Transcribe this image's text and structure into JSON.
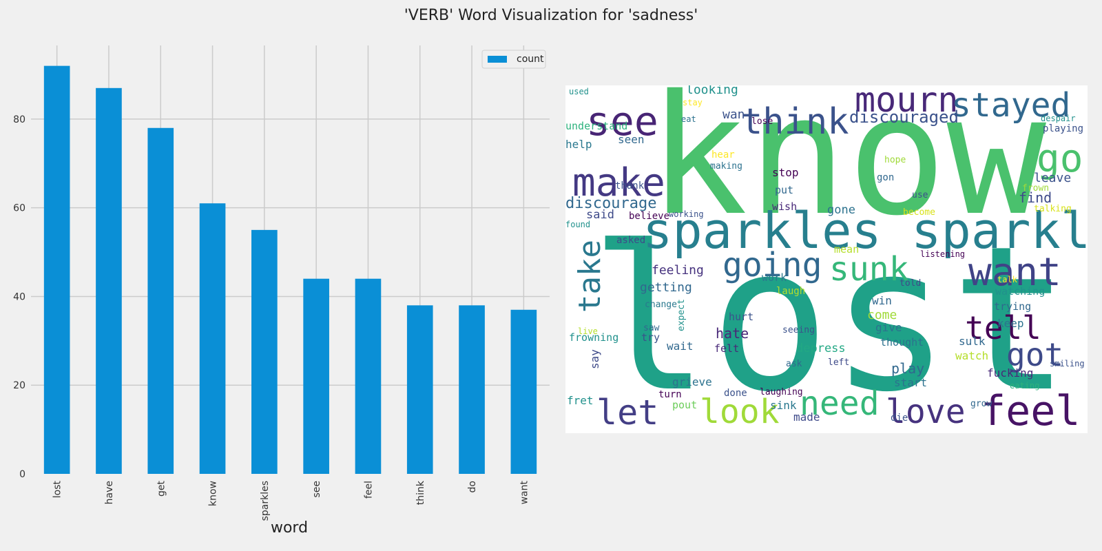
{
  "figure": {
    "title": "'VERB' Word Visualization for 'sadness'"
  },
  "chart_data": [
    {
      "type": "bar",
      "categories": [
        "lost",
        "have",
        "get",
        "know",
        "sparkles",
        "see",
        "feel",
        "think",
        "do",
        "want"
      ],
      "series": [
        {
          "name": "count",
          "values": [
            92,
            87,
            78,
            61,
            55,
            44,
            44,
            38,
            38,
            37
          ]
        }
      ],
      "xlabel": "word",
      "ylabel": "",
      "ylim": [
        0,
        96.6
      ],
      "yticks": [
        0,
        20,
        40,
        60,
        80
      ],
      "grid": true,
      "legend": "top-right",
      "colors": {
        "bar": "#0a8fd6",
        "grid": "#cbcbcb",
        "background": "#f0f0f0"
      }
    },
    {
      "type": "wordcloud",
      "background": "#ffffff",
      "words": [
        {
          "text": "know",
          "color": "#4ac16d"
        },
        {
          "text": "lost",
          "color": "#1fa188"
        },
        {
          "text": "sparkles sparkles",
          "color": "#277f8e"
        },
        {
          "text": "see",
          "color": "#482575"
        },
        {
          "text": "think",
          "color": "#3b528b"
        },
        {
          "text": "mourn",
          "color": "#482878"
        },
        {
          "text": "stayed",
          "color": "#31688e"
        },
        {
          "text": "make",
          "color": "#443983"
        },
        {
          "text": "go",
          "color": "#4ac16d"
        },
        {
          "text": "want",
          "color": "#404387"
        },
        {
          "text": "take",
          "color": "#2a788e"
        },
        {
          "text": "going",
          "color": "#31688e"
        },
        {
          "text": "sunk",
          "color": "#35b779"
        },
        {
          "text": "tell",
          "color": "#440154"
        },
        {
          "text": "got",
          "color": "#3e4a89"
        },
        {
          "text": "let",
          "color": "#433e85"
        },
        {
          "text": "look",
          "color": "#a0da39"
        },
        {
          "text": "need",
          "color": "#35b779"
        },
        {
          "text": "love",
          "color": "#46327e"
        },
        {
          "text": "feel",
          "color": "#471365"
        },
        {
          "text": "discouraged",
          "color": "#3b528b"
        },
        {
          "text": "discourage",
          "color": "#31688e"
        },
        {
          "text": "looking",
          "color": "#21918c"
        },
        {
          "text": "wan",
          "color": "#3b528b"
        },
        {
          "text": "lose",
          "color": "#440154"
        },
        {
          "text": "understand",
          "color": "#2db27d"
        },
        {
          "text": "help",
          "color": "#2a788e"
        },
        {
          "text": "seen",
          "color": "#31688e"
        },
        {
          "text": "stop",
          "color": "#440154"
        },
        {
          "text": "thank",
          "color": "#3b528b"
        },
        {
          "text": "put",
          "color": "#31688e"
        },
        {
          "text": "wish",
          "color": "#482878"
        },
        {
          "text": "said",
          "color": "#3e4a89"
        },
        {
          "text": "gone",
          "color": "#2c728e"
        },
        {
          "text": "believe",
          "color": "#440154"
        },
        {
          "text": "working",
          "color": "#3b528b"
        },
        {
          "text": "found",
          "color": "#21918c"
        },
        {
          "text": "asked",
          "color": "#3e4a89"
        },
        {
          "text": "feeling",
          "color": "#46327e"
        },
        {
          "text": "getting",
          "color": "#31688e"
        },
        {
          "text": "work",
          "color": "#2a788e"
        },
        {
          "text": "laugh",
          "color": "#b5de2b"
        },
        {
          "text": "change",
          "color": "#2a788e"
        },
        {
          "text": "expect",
          "color": "#21918c"
        },
        {
          "text": "hurt",
          "color": "#3b528b"
        },
        {
          "text": "hate",
          "color": "#482878"
        },
        {
          "text": "saw",
          "color": "#31688e"
        },
        {
          "text": "try",
          "color": "#3b528b"
        },
        {
          "text": "wait",
          "color": "#31688e"
        },
        {
          "text": "felt",
          "color": "#482878"
        },
        {
          "text": "frowning",
          "color": "#21918c"
        },
        {
          "text": "live",
          "color": "#b5de2b"
        },
        {
          "text": "say",
          "color": "#3e4a89"
        },
        {
          "text": "grieve",
          "color": "#2c728e"
        },
        {
          "text": "done",
          "color": "#3b528b"
        },
        {
          "text": "turn",
          "color": "#440154"
        },
        {
          "text": "pout",
          "color": "#6ccd5a"
        },
        {
          "text": "fret",
          "color": "#21918c"
        },
        {
          "text": "laughing",
          "color": "#440154"
        },
        {
          "text": "sink",
          "color": "#2a788e"
        },
        {
          "text": "made",
          "color": "#3e4a89"
        },
        {
          "text": "depress",
          "color": "#22a884"
        },
        {
          "text": "come",
          "color": "#a0da39"
        },
        {
          "text": "win",
          "color": "#31688e"
        },
        {
          "text": "give",
          "color": "#2c728e"
        },
        {
          "text": "seeing",
          "color": "#3b528b"
        },
        {
          "text": "ask",
          "color": "#31688e"
        },
        {
          "text": "left",
          "color": "#3e4a89"
        },
        {
          "text": "play",
          "color": "#31688e"
        },
        {
          "text": "start",
          "color": "#2c728e"
        },
        {
          "text": "die",
          "color": "#3b528b"
        },
        {
          "text": "thought",
          "color": "#2c728e"
        },
        {
          "text": "sulk",
          "color": "#31688e"
        },
        {
          "text": "watch",
          "color": "#b5de2b"
        },
        {
          "text": "fucking",
          "color": "#482878"
        },
        {
          "text": "eating",
          "color": "#2db27d"
        },
        {
          "text": "grow",
          "color": "#31688e"
        },
        {
          "text": "keep",
          "color": "#2c728e"
        },
        {
          "text": "trying",
          "color": "#31688e"
        },
        {
          "text": "smiling",
          "color": "#3b528b"
        },
        {
          "text": "watching",
          "color": "#21918c"
        },
        {
          "text": "talk",
          "color": "#fde725"
        },
        {
          "text": "told",
          "color": "#3e4a89"
        },
        {
          "text": "listening",
          "color": "#440154"
        },
        {
          "text": "mean",
          "color": "#b5de2b"
        },
        {
          "text": "leave",
          "color": "#3b528b"
        },
        {
          "text": "find",
          "color": "#3e4a89"
        },
        {
          "text": "frown",
          "color": "#a0da39"
        },
        {
          "text": "talking",
          "color": "#d8e219"
        },
        {
          "text": "become",
          "color": "#d8e219"
        },
        {
          "text": "use",
          "color": "#3b528b"
        },
        {
          "text": "gon",
          "color": "#31688e"
        },
        {
          "text": "hope",
          "color": "#a0da39"
        },
        {
          "text": "playing",
          "color": "#3b528b"
        },
        {
          "text": "despair",
          "color": "#21918c"
        },
        {
          "text": "hear",
          "color": "#fde725"
        },
        {
          "text": "making",
          "color": "#2c728e"
        },
        {
          "text": "stay",
          "color": "#fde725"
        },
        {
          "text": "eat",
          "color": "#2c728e"
        },
        {
          "text": "used",
          "color": "#21918c"
        }
      ]
    }
  ]
}
